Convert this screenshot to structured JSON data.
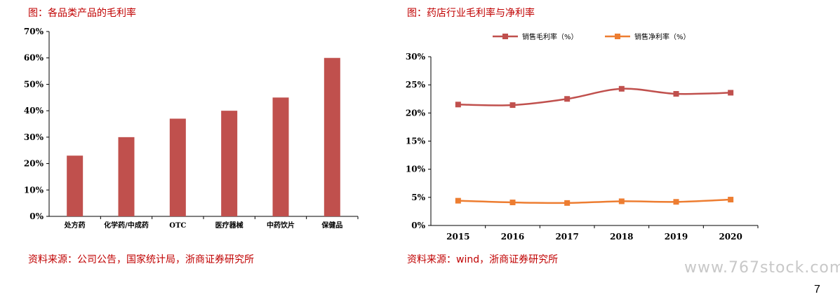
{
  "left_chart": {
    "caption": "图：各品类产品的毛利率",
    "source": "资料来源：公司公告，国家统计局，浙商证券研究所"
  },
  "right_chart": {
    "caption": "图：药店行业毛利率与净利率",
    "source": "资料来源：wind，浙商证券研究所"
  },
  "watermark": "www.767stock.com",
  "page_number": "7",
  "colors": {
    "bar": "#c0504d",
    "gross_line": "#c0504d",
    "net_line": "#ed7d31",
    "caption": "#c00000"
  },
  "chart_data": [
    {
      "type": "bar",
      "title": "图：各品类产品的毛利率",
      "categories": [
        "处方药",
        "化学药/中成药",
        "OTC",
        "医疗器械",
        "中药饮片",
        "保健品"
      ],
      "values": [
        23,
        30,
        37,
        40,
        45,
        60
      ],
      "yticks": [
        "0%",
        "10%",
        "20%",
        "30%",
        "40%",
        "50%",
        "60%",
        "70%"
      ],
      "ylim": [
        0,
        70
      ],
      "grid": false
    },
    {
      "type": "line",
      "title": "图：药店行业毛利率与净利率",
      "x": [
        "2015",
        "2016",
        "2017",
        "2018",
        "2019",
        "2020"
      ],
      "series": [
        {
          "name": "销售毛利率（%）",
          "values": [
            21.5,
            21.4,
            22.5,
            24.3,
            23.4,
            23.6
          ]
        },
        {
          "name": "销售净利率（%）",
          "values": [
            4.4,
            4.1,
            4.0,
            4.3,
            4.2,
            4.6
          ]
        }
      ],
      "yticks": [
        "0%",
        "5%",
        "10%",
        "15%",
        "20%",
        "25%",
        "30%"
      ],
      "ylim": [
        0,
        30
      ],
      "legend": "top",
      "grid": false
    }
  ]
}
